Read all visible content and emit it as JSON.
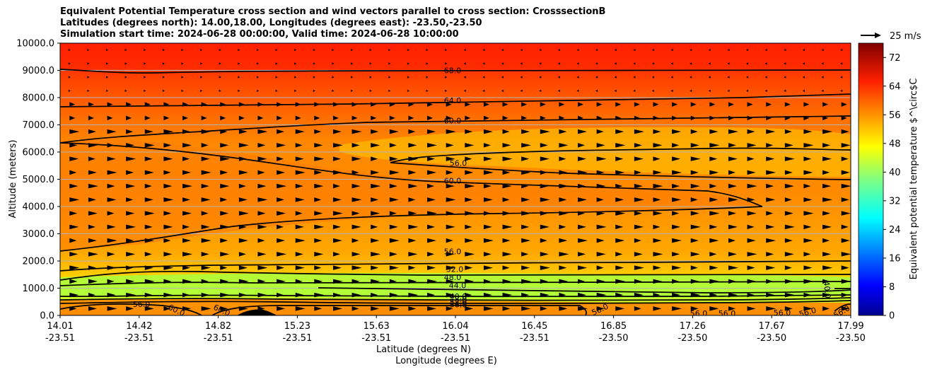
{
  "title_lines": [
    "Equivalent Potential Temperature cross section and wind vectors parallel to cross section: CrosssectionB",
    "Latitudes (degrees north): 14.00,18.00, Longitudes (degrees east): -23.50,-23.50",
    "Simulation start time: 2024-06-28 00:00:00, Valid time: 2024-06-28 10:00:00"
  ],
  "chart_data": {
    "type": "filled-contour",
    "title": "Equivalent Potential Temperature cross section and wind vectors parallel to cross section: CrosssectionB",
    "ylabel": "Altitude (meters)",
    "xlabel": "Latitude (degrees N)",
    "xlabel2": "Longitude (degrees E)",
    "ylim": [
      0,
      10000
    ],
    "yticks": [
      "0.0",
      "1000.0",
      "2000.0",
      "3000.0",
      "4000.0",
      "5000.0",
      "6000.0",
      "7000.0",
      "8000.0",
      "9000.0",
      "10000.0"
    ],
    "xticks": [
      {
        "lat": "14.01",
        "lon": "-23.51"
      },
      {
        "lat": "14.42",
        "lon": "-23.51"
      },
      {
        "lat": "14.82",
        "lon": "-23.51"
      },
      {
        "lat": "15.23",
        "lon": "-23.51"
      },
      {
        "lat": "15.63",
        "lon": "-23.51"
      },
      {
        "lat": "16.04",
        "lon": "-23.51"
      },
      {
        "lat": "16.45",
        "lon": "-23.51"
      },
      {
        "lat": "16.85",
        "lon": "-23.50"
      },
      {
        "lat": "17.26",
        "lon": "-23.50"
      },
      {
        "lat": "17.67",
        "lon": "-23.50"
      },
      {
        "lat": "17.99",
        "lon": "-23.50"
      }
    ],
    "grid": "horizontal",
    "colorbar": {
      "label": "Equivalent potential temperature $^\\circ$C",
      "ticks": [
        "0",
        "8",
        "16",
        "24",
        "32",
        "40",
        "48",
        "56",
        "64",
        "72"
      ],
      "min": 0,
      "max": 76,
      "colormap": "jet"
    },
    "wind_key": {
      "label": "25 m/s"
    },
    "contour_levels": [
      {
        "label": "68.0",
        "altitude_m": 9000
      },
      {
        "label": "64.0",
        "altitude_m": 7900
      },
      {
        "label": "60.0",
        "altitude_m": 7150
      },
      {
        "label": "56.0",
        "altitude_m": 5600
      },
      {
        "label": "60.0",
        "altitude_m": 4950
      },
      {
        "label": "56.0",
        "altitude_m": 2350
      },
      {
        "label": "52.0",
        "altitude_m": 1700
      },
      {
        "label": "48.0",
        "altitude_m": 1400
      },
      {
        "label": "44.0",
        "altitude_m": 1100
      },
      {
        "label": "40.0",
        "altitude_m": 700
      },
      {
        "label": "48.0",
        "altitude_m": 600
      },
      {
        "label": "52.0",
        "altitude_m": 500
      },
      {
        "label": "56.0",
        "altitude_m": 400
      }
    ],
    "bottom_labels": [
      "56.0",
      "60.0",
      "60.0",
      "56.0",
      "56.0",
      "56.0",
      "56.0",
      "56.0",
      "56.0",
      "40.0"
    ]
  }
}
